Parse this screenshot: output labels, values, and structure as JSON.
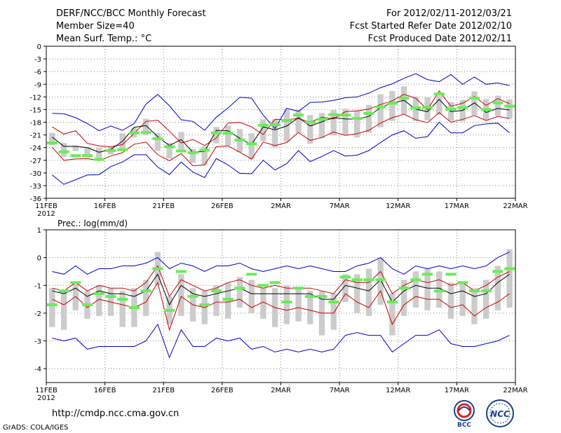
{
  "header": {
    "left": [
      "DERF/NCC/BCC Monthly Forecast",
      "Member Size=40",
      "Mean Surf. Temp.: °C"
    ],
    "right": [
      "For 2012/02/11-2012/03/21",
      "Fcst Started Refer Date 2012/02/10",
      "Fcst Produced Date 2012/02/11"
    ]
  },
  "footer": {
    "url": "http://cmdp.ncc.cma.gov.cn",
    "credit": "GrADS: COLA/IGES",
    "logo1": "BCC",
    "logo2": "NCC"
  },
  "colors": {
    "envelope": "#0000cc",
    "spread": "#cc0000",
    "mean": "#000000",
    "obs": "#66ee55",
    "box": "#cccccc",
    "grid": "#888888"
  },
  "chart_data": [
    {
      "type": "line",
      "title": "Mean Surf. Temp.: °C",
      "xlabel": "",
      "ylabel": "°C",
      "ylim": [
        -36,
        0
      ],
      "yticks": [
        "0",
        "-3",
        "-6",
        "-9",
        "-12",
        "-15",
        "-18",
        "-21",
        "-24",
        "-27",
        "-30",
        "-33",
        "-36"
      ],
      "ytick_values": [
        0,
        -3,
        -6,
        -9,
        -12,
        -15,
        -18,
        -21,
        -24,
        -27,
        -30,
        -33,
        -36
      ],
      "xticks": [
        "11FEB",
        "16FEB",
        "21FEB",
        "26FEB",
        "2MAR",
        "7MAR",
        "12MAR",
        "17MAR",
        "22MAR"
      ],
      "xyear": "2012",
      "days": 40,
      "series": [
        {
          "name": "max",
          "values": [
            -15.9,
            -16,
            -16.9,
            -18.3,
            -20,
            -18.9,
            -19.9,
            -18.3,
            -13.7,
            -11.4,
            -14.1,
            -17.4,
            -17.8,
            -19.9,
            -16.8,
            -14.6,
            -12.1,
            -12.3,
            -16.3,
            -19.5,
            -14.7,
            -15.4,
            -13.3,
            -13.2,
            -12.8,
            -12.2,
            -12.0,
            -11.1,
            -9.8,
            -8.9,
            -7.6,
            -6.5,
            -7.9,
            -8.4,
            -6.7,
            -9.0,
            -7.3,
            -9.0,
            -8.7,
            -9.3
          ]
        },
        {
          "name": "upper",
          "values": [
            -19.1,
            -20.8,
            -20.0,
            -23.0,
            -23.6,
            -23.8,
            -23.3,
            -20.6,
            -17.8,
            -17.5,
            -20.1,
            -22.9,
            -22.1,
            -23.5,
            -21.7,
            -18.2,
            -18.0,
            -19.1,
            -20.9,
            -17.3,
            -17.4,
            -17.1,
            -18.0,
            -16.8,
            -17.2,
            -15.5,
            -15.3,
            -14.9,
            -13.8,
            -12.9,
            -11.4,
            -12.3,
            -15.0,
            -10.6,
            -14.2,
            -13.5,
            -11.9,
            -14.0,
            -12.4,
            -13.6
          ]
        },
        {
          "name": "mean",
          "values": [
            -21.5,
            -23.7,
            -23.7,
            -24.0,
            -25.1,
            -24.4,
            -22.5,
            -19.2,
            -18.8,
            -21.4,
            -23.5,
            -22.1,
            -25.1,
            -24.9,
            -19.9,
            -20.0,
            -21.8,
            -23.3,
            -19.1,
            -19.8,
            -18.9,
            -16.9,
            -18.9,
            -17.9,
            -16.9,
            -17.2,
            -17.3,
            -16.6,
            -14.5,
            -13.4,
            -12.8,
            -14.9,
            -15.5,
            -12.6,
            -15.5,
            -15.2,
            -13.4,
            -15.7,
            -14.7,
            -15.1
          ]
        },
        {
          "name": "lower",
          "values": [
            -23.9,
            -27.0,
            -26.7,
            -26.6,
            -27.1,
            -26.0,
            -25.2,
            -23.2,
            -22.7,
            -25.7,
            -27.1,
            -25.4,
            -28.3,
            -28.1,
            -23.8,
            -23.6,
            -25.1,
            -26.7,
            -22.7,
            -23.5,
            -22.8,
            -20.4,
            -22.3,
            -21.6,
            -20.3,
            -21.1,
            -20.7,
            -19.9,
            -18.2,
            -16.9,
            -16.1,
            -17.4,
            -18.1,
            -15.7,
            -18.0,
            -17.3,
            -16.4,
            -17.6,
            -16.6,
            -17.1
          ]
        },
        {
          "name": "min",
          "values": [
            -30.5,
            -32.7,
            -31.6,
            -30.5,
            -30.4,
            -28.5,
            -27.4,
            -25.7,
            -25.7,
            -28.6,
            -30.4,
            -27.4,
            -29.8,
            -31.1,
            -26.6,
            -28.1,
            -30.1,
            -30.2,
            -27.0,
            -29.3,
            -27.8,
            -24.7,
            -27.3,
            -26.1,
            -24.7,
            -26.0,
            -25.8,
            -24.7,
            -22.8,
            -21.0,
            -20.0,
            -21.8,
            -21.4,
            -18.0,
            -20.5,
            -20.5,
            -18.8,
            -18.4,
            -18.2,
            -20.5
          ]
        },
        {
          "name": "box_top",
          "values": [
            -20.5,
            -22.9,
            -23.5,
            -23.9,
            -24.1,
            -23.9,
            -20.6,
            -19.3,
            -17.2,
            -20.5,
            -22.9,
            -20.3,
            -24.3,
            -23.7,
            -19.1,
            -18.8,
            -19.6,
            -20.6,
            -17.3,
            -17.3,
            -15.0,
            -15.0,
            -16.3,
            -15.8,
            -15.1,
            -14.8,
            -15.3,
            -13.9,
            -11.4,
            -10.6,
            -9.5,
            -11.9,
            -12.1,
            -11.7,
            -13.2,
            -12.7,
            -10.7,
            -12.5,
            -11.7,
            -12.6
          ]
        },
        {
          "name": "box_bottom",
          "values": [
            -23.4,
            -26.2,
            -24.8,
            -26.1,
            -26.6,
            -25.6,
            -24.3,
            -21.6,
            -21.1,
            -24.8,
            -26.6,
            -25.1,
            -27.6,
            -28.1,
            -23.0,
            -23.5,
            -25.1,
            -26.8,
            -22.5,
            -24.0,
            -22.6,
            -20.5,
            -23.1,
            -21.8,
            -21.1,
            -21.0,
            -21.6,
            -20.5,
            -19.2,
            -17.7,
            -16.1,
            -17.7,
            -17.5,
            -16.2,
            -17.7,
            -17.8,
            -16.3,
            -17.5,
            -16.5,
            -17.1
          ]
        },
        {
          "name": "observed",
          "values": [
            -22.9,
            -25.0,
            -25.9,
            -25.9,
            -26.8,
            -24.7,
            -24.5,
            -20.5,
            -20.4,
            -21.9,
            -23.8,
            -24.8,
            -25.2,
            -24.6,
            -20.5,
            -20.6,
            -22.2,
            -23.1,
            -18.7,
            -18.6,
            -17.6,
            -16.3,
            -18.0,
            -17.3,
            -16.2,
            -16.3,
            -17.1,
            -15.9,
            -14.4,
            -13.5,
            -12.3,
            -14.6,
            -14.5,
            -11.3,
            -14.9,
            -14.5,
            -12.3,
            -15.0,
            -13.4,
            -14.2
          ]
        }
      ]
    },
    {
      "type": "line",
      "title": "Prec.: log(mm/d)",
      "xlabel": "",
      "ylabel": "log(mm/d)",
      "ylim": [
        -4.5,
        1
      ],
      "yticks": [
        "1",
        "0",
        "-1",
        "-2",
        "-3",
        "-4"
      ],
      "ytick_values": [
        1,
        0,
        -1,
        -2,
        -3,
        -4
      ],
      "xticks": [
        "11FEB",
        "16FEB",
        "21FEB",
        "26FEB",
        "2MAR",
        "7MAR",
        "12MAR",
        "17MAR",
        "22MAR"
      ],
      "xyear": "2012",
      "days": 40,
      "series": [
        {
          "name": "max",
          "values": [
            -0.5,
            -0.6,
            -0.3,
            -0.6,
            -0.4,
            -0.4,
            -0.3,
            -0.3,
            -0.2,
            0.0,
            -0.4,
            -0.2,
            -0.3,
            -0.5,
            -0.3,
            -0.3,
            -0.2,
            -0.4,
            -0.5,
            -0.4,
            -0.3,
            -0.4,
            -0.3,
            -0.4,
            -0.5,
            -0.5,
            -0.3,
            -0.2,
            0.0,
            -0.4,
            -0.6,
            -0.3,
            -0.4,
            -0.3,
            -0.4,
            -0.3,
            -0.4,
            -0.3,
            0.0,
            0.2
          ]
        },
        {
          "name": "upper",
          "values": [
            -1.1,
            -1.2,
            -0.9,
            -1.2,
            -1.0,
            -1.1,
            -1.1,
            -1.2,
            -0.9,
            -0.3,
            -1.4,
            -0.8,
            -1.0,
            -1.2,
            -1.1,
            -0.9,
            -0.8,
            -1.0,
            -1.1,
            -1.0,
            -1.1,
            -1.1,
            -1.1,
            -1.2,
            -1.3,
            -0.8,
            -0.9,
            -0.9,
            -0.5,
            -1.3,
            -1.0,
            -0.8,
            -0.9,
            -0.8,
            -1.0,
            -0.9,
            -1.2,
            -1.0,
            -0.7,
            -0.5
          ]
        },
        {
          "name": "mean",
          "values": [
            -1.2,
            -1.3,
            -1.1,
            -1.4,
            -1.2,
            -1.3,
            -1.3,
            -1.4,
            -1.2,
            -0.6,
            -1.7,
            -1.0,
            -1.3,
            -1.4,
            -1.3,
            -1.2,
            -1.1,
            -1.3,
            -1.3,
            -1.3,
            -1.3,
            -1.3,
            -1.3,
            -1.5,
            -1.5,
            -1.0,
            -1.1,
            -1.2,
            -0.8,
            -1.6,
            -1.2,
            -1.0,
            -1.1,
            -1.1,
            -1.3,
            -1.2,
            -1.4,
            -1.3,
            -0.9,
            -0.6
          ]
        },
        {
          "name": "lower",
          "values": [
            -1.5,
            -1.7,
            -1.4,
            -1.8,
            -1.5,
            -1.6,
            -1.7,
            -1.8,
            -1.6,
            -0.9,
            -2.6,
            -1.4,
            -1.7,
            -1.8,
            -1.6,
            -1.6,
            -1.5,
            -1.8,
            -1.6,
            -1.8,
            -1.9,
            -1.8,
            -1.9,
            -2.0,
            -2.0,
            -1.3,
            -1.6,
            -1.8,
            -1.2,
            -2.4,
            -1.7,
            -1.4,
            -1.5,
            -1.5,
            -1.8,
            -1.7,
            -2.1,
            -1.8,
            -1.6,
            -1.3
          ]
        },
        {
          "name": "min",
          "values": [
            -2.9,
            -3.0,
            -2.9,
            -3.3,
            -3.2,
            -3.2,
            -3.2,
            -3.2,
            -3.0,
            -2.4,
            -3.6,
            -2.6,
            -3.2,
            -3.2,
            -2.9,
            -3.0,
            -2.9,
            -3.3,
            -3.2,
            -3.4,
            -3.3,
            -3.4,
            -3.3,
            -3.4,
            -3.3,
            -2.8,
            -2.7,
            -2.8,
            -2.8,
            -3.4,
            -3.1,
            -2.8,
            -2.8,
            -2.6,
            -3.1,
            -3.2,
            -3.2,
            -3.1,
            -3.0,
            -2.8
          ]
        },
        {
          "name": "box_top",
          "values": [
            -1.1,
            -1.2,
            -0.9,
            -1.2,
            -1.0,
            -1.1,
            -1.2,
            -1.1,
            -0.8,
            0.2,
            -1.4,
            -0.6,
            -1.1,
            -1.2,
            -1.0,
            -0.9,
            -0.7,
            -0.8,
            -1.1,
            -1.1,
            -1.0,
            -1.1,
            -1.2,
            -1.2,
            -1.3,
            -0.6,
            -0.6,
            -0.4,
            0.0,
            -1.3,
            -0.8,
            -0.5,
            -0.4,
            -0.5,
            -0.9,
            -0.9,
            -1.1,
            -0.8,
            -0.3,
            0.3
          ]
        },
        {
          "name": "box_bottom",
          "values": [
            -2.5,
            -2.6,
            -1.9,
            -2.2,
            -2.1,
            -2.1,
            -2.5,
            -2.5,
            -2.1,
            -1.0,
            -2.4,
            -2.1,
            -2.3,
            -2.4,
            -2.1,
            -2.2,
            -1.8,
            -2.0,
            -2.2,
            -2.5,
            -2.4,
            -2.3,
            -2.4,
            -2.8,
            -2.6,
            -1.6,
            -2.0,
            -2.1,
            -1.7,
            -2.8,
            -2.1,
            -1.8,
            -1.9,
            -1.8,
            -2.2,
            -2.1,
            -2.4,
            -2.2,
            -1.9,
            -1.8
          ]
        },
        {
          "name": "observed",
          "values": [
            -1.7,
            -1.2,
            -0.9,
            -1.7,
            -1.3,
            -1.4,
            -1.5,
            -1.8,
            -1.2,
            -0.4,
            -1.9,
            -0.5,
            -1.4,
            -1.7,
            -1.2,
            -1.5,
            -1.1,
            -0.6,
            -1.0,
            -0.9,
            -1.6,
            -1.1,
            -1.4,
            -1.4,
            -1.6,
            -0.7,
            -0.8,
            -0.8,
            -0.8,
            -1.6,
            -1.1,
            -0.8,
            -0.6,
            -1.2,
            -0.6,
            -0.9,
            -1.2,
            -1.2,
            -0.5,
            -0.4
          ]
        }
      ]
    }
  ]
}
